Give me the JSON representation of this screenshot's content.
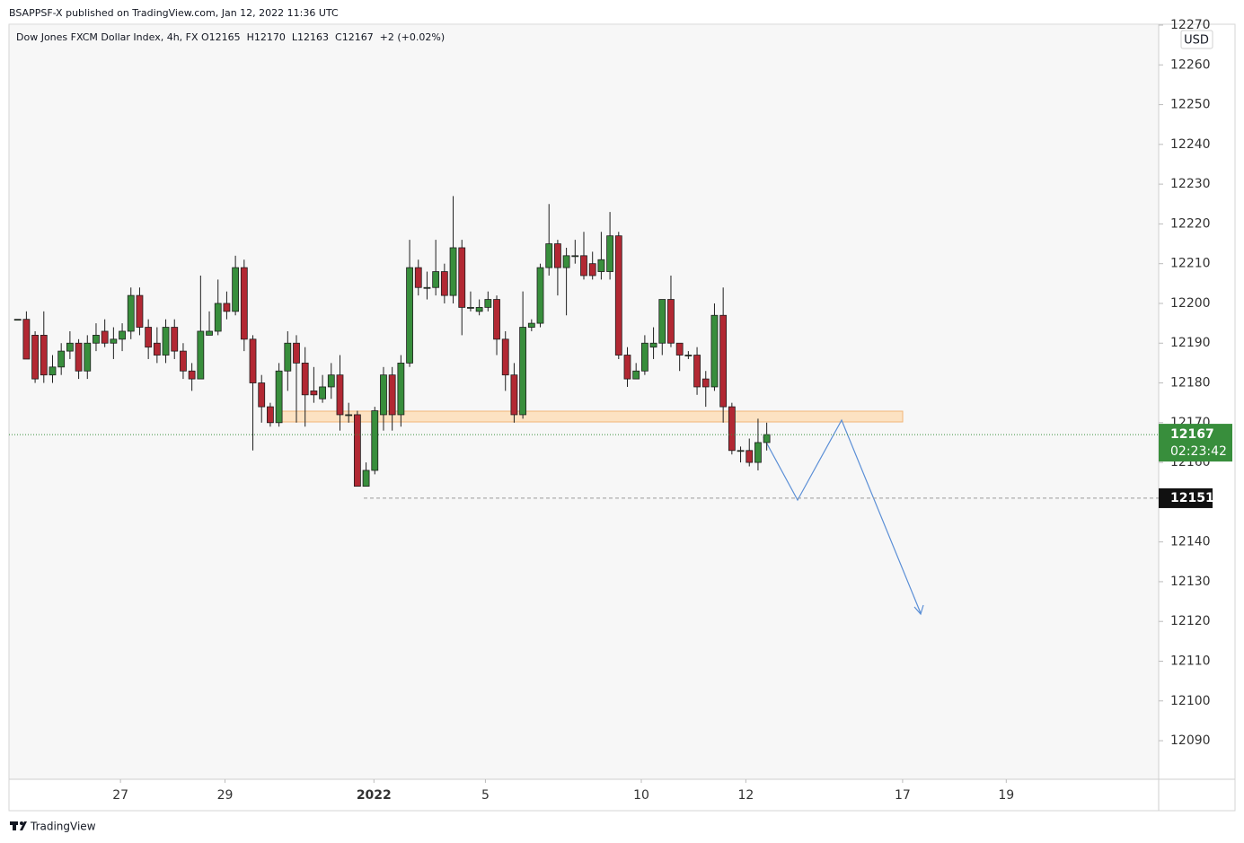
{
  "header": "BSAPPSF-X published on TradingView.com, Jan 12, 2022 11:36 UTC",
  "footer": "TradingView",
  "chart_data": {
    "type": "candlestick",
    "title": "Dow Jones FXCM Dollar Index, 4h, FX",
    "ohlc_label": "O12165  H12170  L12163  C12167  +2 (+0.02%)",
    "currency": "USD",
    "x": [
      0,
      1,
      2,
      3,
      4,
      5,
      6,
      7,
      8,
      9,
      10,
      11,
      12,
      13,
      14,
      15,
      16,
      17,
      18,
      19,
      20,
      21,
      22,
      23,
      24,
      25,
      26,
      27,
      28,
      29,
      30,
      31,
      32,
      33,
      34,
      35,
      36,
      37,
      38,
      39,
      40,
      41,
      42,
      43,
      44,
      45,
      46,
      47,
      48,
      49,
      50,
      51,
      52,
      53,
      54,
      55,
      56,
      57,
      58,
      59,
      60,
      61,
      62,
      63,
      64,
      65,
      66,
      67,
      68,
      69,
      70,
      71,
      72,
      73,
      74,
      75,
      76,
      77,
      78,
      79,
      80,
      81,
      82,
      83,
      84,
      85,
      86
    ],
    "open": [
      12196,
      12196,
      12192,
      12192,
      12182,
      12184,
      12188,
      12190,
      12183,
      12190,
      12193,
      12190,
      12191,
      12193,
      12202,
      12194,
      12190,
      12187,
      12194,
      12188,
      12183,
      12181,
      12192,
      12193,
      12200,
      12198,
      12209,
      12191,
      12180,
      12174,
      12170,
      12183,
      12190,
      12185,
      12178,
      12176,
      12179,
      12182,
      12172,
      12172,
      12154,
      12158,
      12172,
      12182,
      12172,
      12185,
      12209,
      12204,
      12204,
      12208,
      12202,
      12214,
      12199,
      12198,
      12199,
      12201,
      12191,
      12182,
      12172,
      12194,
      12195,
      12209,
      12215,
      12209,
      12212,
      12212,
      12210,
      12208,
      12208,
      12217,
      12187,
      12181,
      12183,
      12189,
      12190,
      12201,
      12190,
      12187,
      12187,
      12181,
      12179,
      12197,
      12174,
      12163,
      12163,
      12160,
      12165
    ],
    "high": [
      12196,
      12198,
      12193,
      12198,
      12187,
      12190,
      12193,
      12191,
      12192,
      12195,
      12196,
      12194,
      12195,
      12204,
      12204,
      12196,
      12194,
      12196,
      12196,
      12190,
      12185,
      12207,
      12198,
      12206,
      12203,
      12212,
      12211,
      12192,
      12182,
      12175,
      12185,
      12193,
      12192,
      12189,
      12184,
      12182,
      12185,
      12187,
      12175,
      12173,
      12160,
      12174,
      12184,
      12184,
      12187,
      12216,
      12211,
      12208,
      12216,
      12210,
      12227,
      12216,
      12203,
      12201,
      12203,
      12202,
      12193,
      12185,
      12203,
      12196,
      12210,
      12225,
      12216,
      12214,
      12216,
      12218,
      12213,
      12218,
      12223,
      12218,
      12189,
      12185,
      12192,
      12194,
      12201,
      12207,
      12190,
      12188,
      12189,
      12183,
      12200,
      12204,
      12175,
      12164,
      12166,
      12171,
      12170
    ],
    "low": [
      12196,
      12186,
      12180,
      12180,
      12180,
      12182,
      12186,
      12181,
      12181,
      12188,
      12189,
      12186,
      12188,
      12191,
      12192,
      12186,
      12185,
      12185,
      12186,
      12181,
      12178,
      12181,
      12192,
      12192,
      12196,
      12197,
      12188,
      12163,
      12170,
      12169,
      12169,
      12178,
      12170,
      12169,
      12175,
      12175,
      12176,
      12168,
      12170,
      12154,
      12154,
      12157,
      12168,
      12168,
      12169,
      12184,
      12202,
      12201,
      12202,
      12200,
      12200,
      12192,
      12198,
      12197,
      12198,
      12187,
      12178,
      12170,
      12171,
      12193,
      12194,
      12207,
      12202,
      12197,
      12210,
      12206,
      12206,
      12206,
      12206,
      12186,
      12179,
      12181,
      12182,
      12186,
      12187,
      12189,
      12183,
      12186,
      12177,
      12174,
      12178,
      12170,
      12162,
      12160,
      12159,
      12158,
      12163
    ],
    "close": [
      12196,
      12186,
      12181,
      12182,
      12184,
      12188,
      12190,
      12183,
      12190,
      12192,
      12190,
      12191,
      12193,
      12202,
      12194,
      12189,
      12187,
      12194,
      12188,
      12183,
      12181,
      12193,
      12193,
      12200,
      12198,
      12209,
      12191,
      12180,
      12174,
      12170,
      12183,
      12190,
      12185,
      12177,
      12177,
      12179,
      12182,
      12172,
      12172,
      12154,
      12158,
      12173,
      12182,
      12172,
      12185,
      12209,
      12204,
      12204,
      12208,
      12202,
      12214,
      12199,
      12199,
      12199,
      12201,
      12191,
      12182,
      12172,
      12194,
      12195,
      12209,
      12215,
      12209,
      12212,
      12212,
      12207,
      12207,
      12211,
      12217,
      12187,
      12181,
      12183,
      12190,
      12190,
      12201,
      12190,
      12187,
      12187,
      12179,
      12179,
      12197,
      12174,
      12163,
      12163,
      12160,
      12165,
      12167
    ],
    "up_color": "#388e3c",
    "down_color": "#b22833",
    "xlim": [
      -1,
      131
    ],
    "xticks": [
      {
        "value": 11.8,
        "label": "27"
      },
      {
        "value": 23.8,
        "label": "29"
      },
      {
        "value": 40.9,
        "label": "2022"
      },
      {
        "value": 53.7,
        "label": "5"
      },
      {
        "value": 71.6,
        "label": "10"
      },
      {
        "value": 83.6,
        "label": "12"
      },
      {
        "value": 101.6,
        "label": "17"
      },
      {
        "value": 113.5,
        "label": "19"
      }
    ],
    "ylim": [
      12080.3,
      12270
    ],
    "yticks": [
      12090,
      12100,
      12110,
      12120,
      12130,
      12140,
      12150,
      12160,
      12170,
      12180,
      12190,
      12200,
      12210,
      12220,
      12230,
      12240,
      12250,
      12260,
      12270
    ],
    "last_price": 12167,
    "countdown": "02:23:42",
    "price_line": 12151
  }
}
